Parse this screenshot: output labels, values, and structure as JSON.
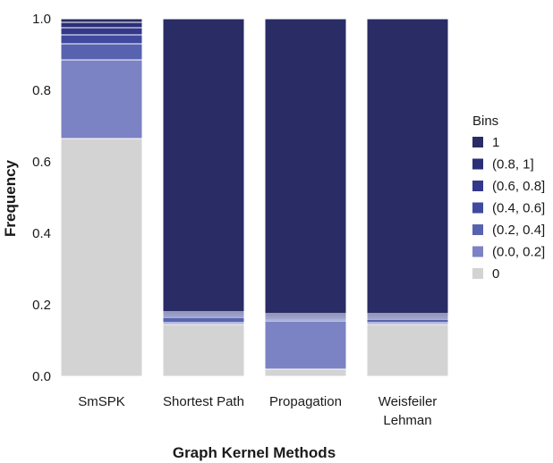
{
  "chart_data": {
    "type": "bar",
    "stacked": true,
    "xlabel": "Graph Kernel Methods",
    "ylabel": "Frequency",
    "ylim": [
      0,
      1
    ],
    "yticks": [
      "0.0",
      "0.2",
      "0.4",
      "0.6",
      "0.8",
      "1.0"
    ],
    "grid": false,
    "legend_position": "right",
    "legend_title": "Bins",
    "categories": [
      [
        "SmSPK"
      ],
      [
        "Shortest Path"
      ],
      [
        "Propagation"
      ],
      [
        "Weisfeiler",
        "Lehman"
      ]
    ],
    "series": [
      {
        "name": "0",
        "color": "#d3d3d3",
        "values": [
          0.665,
          0.145,
          0.02,
          0.145
        ]
      },
      {
        "name": "(0.0, 0.2]",
        "color": "#7b83c4",
        "values": [
          0.22,
          0.005,
          0.135,
          0.005
        ]
      },
      {
        "name": "(0.2, 0.4]",
        "color": "#5863b0",
        "values": [
          0.045,
          0.015,
          0.005,
          0.01
        ]
      },
      {
        "name": "(0.4, 0.6]",
        "color": "#3f4a9e",
        "values": [
          0.025,
          0.005,
          0.005,
          0.005
        ]
      },
      {
        "name": "(0.6, 0.8]",
        "color": "#33388a",
        "values": [
          0.02,
          0.005,
          0.005,
          0.005
        ]
      },
      {
        "name": "(0.8, 1]",
        "color": "#2b2f78",
        "values": [
          0.015,
          0.005,
          0.005,
          0.005
        ]
      },
      {
        "name": "1",
        "color": "#2a2c65",
        "values": [
          0.01,
          0.82,
          0.825,
          0.825
        ]
      }
    ]
  }
}
